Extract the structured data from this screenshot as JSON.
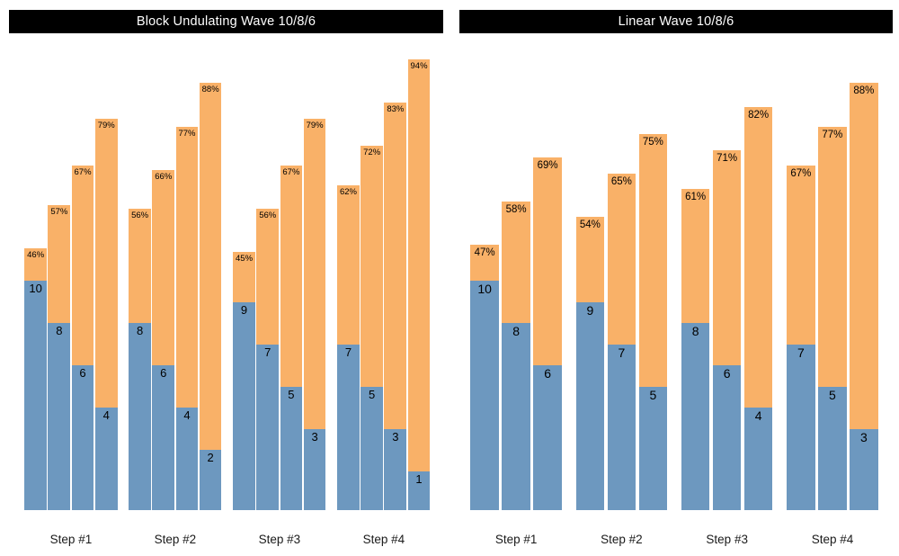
{
  "colors": {
    "reps_bar": "#6d98bf",
    "percent_bar": "#f9b168",
    "title_bg": "#000000",
    "title_fg": "#ffffff",
    "label_text": "#000000"
  },
  "chart_data": [
    {
      "type": "bar",
      "stacked": true,
      "title": "Block Undulating Wave 10/8/6",
      "xlabel": "",
      "ylabel": "",
      "value_axis_hidden": true,
      "grid": false,
      "legend": false,
      "baseline_clipped": true,
      "categories": [
        "Step #1",
        "Step #2",
        "Step #3",
        "Step #4"
      ],
      "series": [
        {
          "name": "reps",
          "color": "#6d98bf",
          "values": [
            [
              10,
              8,
              6,
              4
            ],
            [
              8,
              6,
              4,
              2
            ],
            [
              9,
              7,
              5,
              3
            ],
            [
              7,
              5,
              3,
              1
            ]
          ]
        },
        {
          "name": "percent_of_max",
          "color": "#f9b168",
          "unit": "%",
          "values": [
            [
              46,
              57,
              67,
              79
            ],
            [
              56,
              66,
              77,
              88
            ],
            [
              45,
              56,
              67,
              79
            ],
            [
              62,
              72,
              83,
              94
            ]
          ]
        }
      ]
    },
    {
      "type": "bar",
      "stacked": true,
      "title": "Linear Wave 10/8/6",
      "xlabel": "",
      "ylabel": "",
      "value_axis_hidden": true,
      "grid": false,
      "legend": false,
      "baseline_clipped": true,
      "categories": [
        "Step #1",
        "Step #2",
        "Step #3",
        "Step #4"
      ],
      "series": [
        {
          "name": "reps",
          "color": "#6d98bf",
          "values": [
            [
              10,
              8,
              6
            ],
            [
              9,
              7,
              5
            ],
            [
              8,
              6,
              4
            ],
            [
              7,
              5,
              3
            ]
          ]
        },
        {
          "name": "percent_of_max",
          "color": "#f9b168",
          "unit": "%",
          "values": [
            [
              47,
              58,
              69
            ],
            [
              54,
              65,
              75
            ],
            [
              61,
              71,
              82
            ],
            [
              67,
              77,
              88
            ]
          ]
        }
      ]
    }
  ]
}
